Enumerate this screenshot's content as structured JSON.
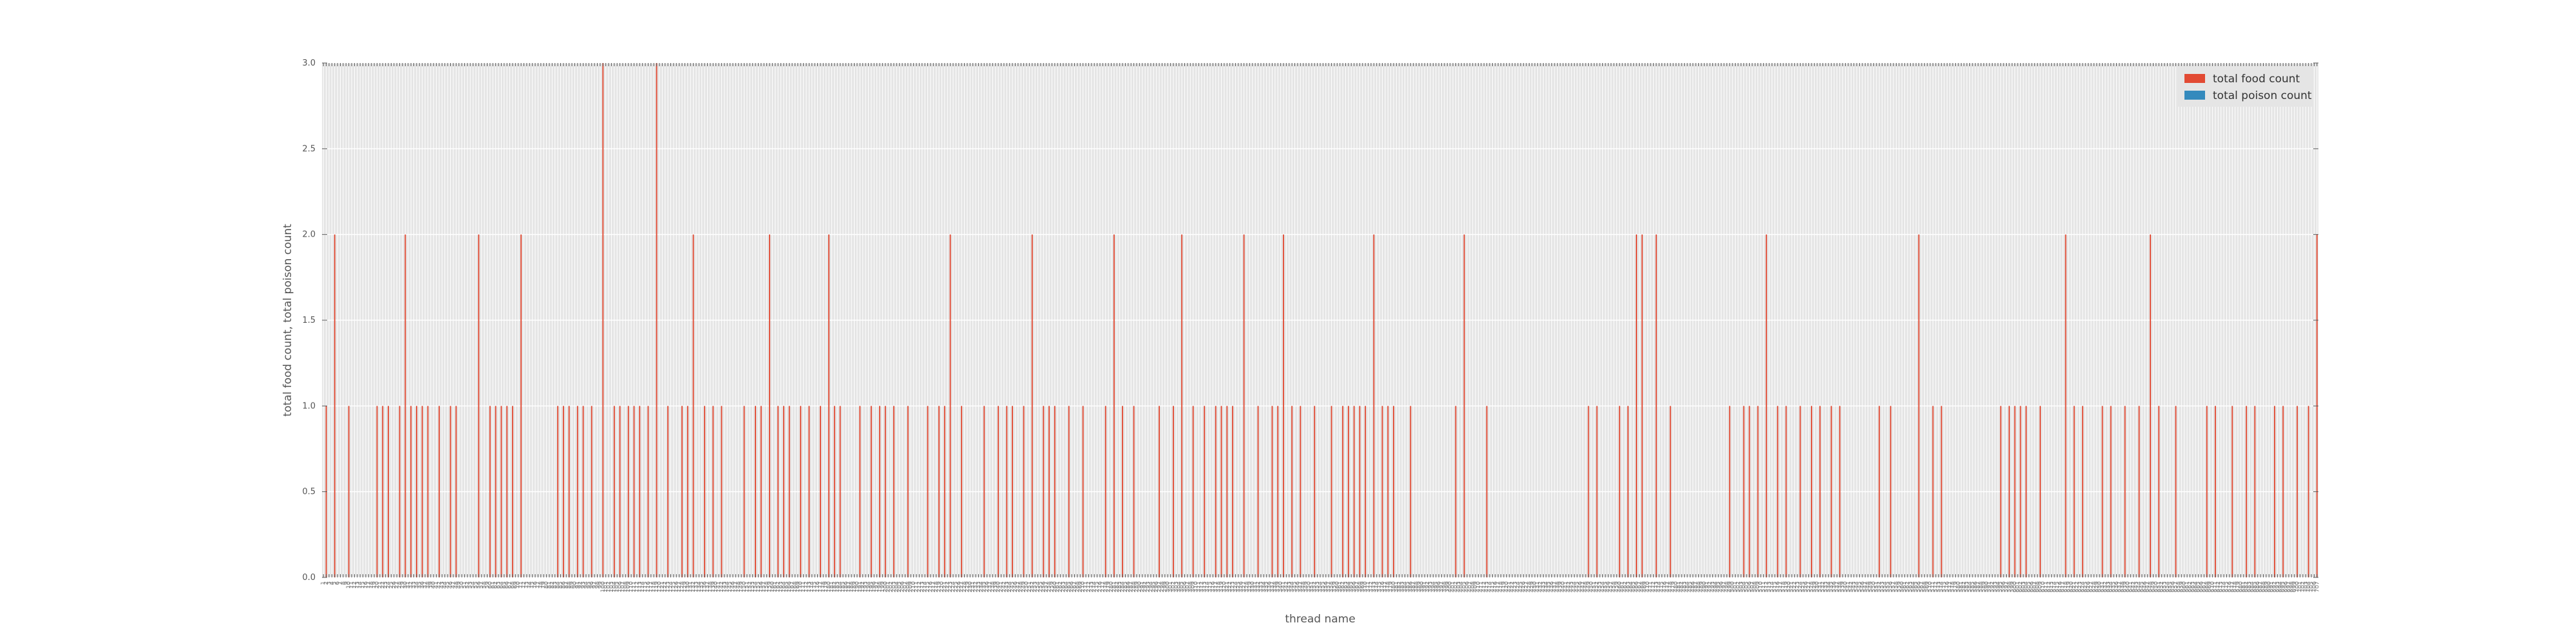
{
  "chart_data": {
    "type": "bar",
    "xlabel": "thread name",
    "ylabel": "total food count, total poison count",
    "ylim": [
      0,
      3.0
    ],
    "yticks": [
      "0.0",
      "0.5",
      "1.0",
      "1.5",
      "2.0",
      "2.5",
      "3.0"
    ],
    "grid": true,
    "legend_position": "top-right",
    "colors": {
      "food": "#e24a33",
      "poison": "#348abd",
      "plot_bg": "#e5e5e5",
      "grid": "#ffffff"
    },
    "category_start": 1,
    "series": [
      {
        "name": "total food count",
        "color": "#e24a33",
        "values": [
          0,
          1,
          0,
          0,
          2,
          0,
          0,
          0,
          0,
          1,
          0,
          0,
          0,
          0,
          0,
          0,
          0,
          0,
          0,
          1,
          0,
          1,
          0,
          1,
          0,
          0,
          0,
          1,
          0,
          2,
          0,
          1,
          0,
          1,
          0,
          1,
          0,
          1,
          0,
          0,
          0,
          1,
          0,
          0,
          0,
          1,
          0,
          1,
          0,
          0,
          0,
          0,
          0,
          0,
          0,
          2,
          0,
          0,
          0,
          1,
          0,
          1,
          0,
          1,
          0,
          1,
          0,
          1,
          0,
          0,
          2,
          0,
          0,
          0,
          0,
          0,
          0,
          0,
          0,
          0,
          0,
          0,
          0,
          1,
          0,
          1,
          0,
          1,
          0,
          0,
          1,
          0,
          1,
          0,
          0,
          1,
          0,
          0,
          0,
          3,
          0,
          0,
          0,
          1,
          0,
          1,
          0,
          0,
          1,
          0,
          1,
          0,
          1,
          0,
          0,
          1,
          0,
          0,
          3,
          0,
          0,
          0,
          1,
          0,
          0,
          0,
          0,
          1,
          0,
          1,
          0,
          2,
          0,
          0,
          0,
          1,
          0,
          0,
          1,
          0,
          0,
          1,
          0,
          0,
          0,
          0,
          0,
          0,
          0,
          1,
          0,
          0,
          0,
          1,
          0,
          1,
          0,
          0,
          2,
          0,
          0,
          1,
          0,
          1,
          0,
          1,
          0,
          0,
          0,
          1,
          0,
          0,
          1,
          0,
          0,
          0,
          1,
          0,
          0,
          2,
          0,
          1,
          0,
          1,
          0,
          0,
          0,
          0,
          0,
          0,
          1,
          0,
          0,
          0,
          1,
          0,
          0,
          1,
          0,
          1,
          0,
          0,
          1,
          0,
          0,
          0,
          0,
          1,
          0,
          0,
          0,
          0,
          0,
          0,
          1,
          0,
          0,
          0,
          1,
          0,
          1,
          0,
          2,
          0,
          0,
          0,
          1,
          0,
          0,
          0,
          0,
          0,
          0,
          0,
          1,
          0,
          0,
          0,
          0,
          1,
          0,
          0,
          1,
          0,
          1,
          0,
          0,
          0,
          1,
          0,
          0,
          2,
          0,
          0,
          0,
          1,
          0,
          1,
          0,
          1,
          0,
          0,
          0,
          0,
          1,
          0,
          0,
          0,
          0,
          1,
          0,
          0,
          0,
          0,
          0,
          0,
          0,
          1,
          0,
          0,
          2,
          0,
          0,
          1,
          0,
          0,
          0,
          1,
          0,
          0,
          0,
          0,
          0,
          0,
          0,
          0,
          1,
          0,
          0,
          0,
          0,
          1,
          0,
          0,
          2,
          0,
          0,
          0,
          1,
          0,
          0,
          0,
          1,
          0,
          0,
          0,
          1,
          0,
          1,
          0,
          1,
          0,
          1,
          0,
          0,
          0,
          2,
          0,
          0,
          0,
          0,
          1,
          0,
          0,
          0,
          0,
          1,
          0,
          1,
          0,
          2,
          0,
          0,
          1,
          0,
          0,
          1,
          0,
          0,
          0,
          0,
          1,
          0,
          0,
          0,
          0,
          0,
          1,
          0,
          0,
          0,
          1,
          0,
          1,
          0,
          1,
          0,
          1,
          0,
          1,
          0,
          0,
          2,
          0,
          0,
          1,
          0,
          1,
          0,
          1,
          0,
          0,
          0,
          0,
          0,
          1,
          0,
          0,
          0,
          0,
          0,
          0,
          0,
          0,
          0,
          0,
          0,
          0,
          0,
          0,
          0,
          1,
          0,
          0,
          2,
          0,
          0,
          0,
          0,
          0,
          0,
          0,
          1,
          0,
          0,
          0,
          0,
          0,
          0,
          0,
          0,
          0,
          0,
          0,
          0,
          0,
          0,
          0,
          0,
          0,
          0,
          0,
          0,
          0,
          0,
          0,
          0,
          0,
          0,
          0,
          0,
          0,
          0,
          0,
          0,
          0,
          0,
          0,
          1,
          0,
          0,
          1,
          0,
          0,
          0,
          0,
          0,
          0,
          0,
          1,
          0,
          0,
          1,
          0,
          0,
          2,
          0,
          2,
          0,
          0,
          0,
          0,
          2,
          0,
          0,
          0,
          0,
          1,
          0,
          0,
          0,
          0,
          0,
          0,
          0,
          0,
          0,
          0,
          0,
          0,
          0,
          0,
          0,
          0,
          0,
          0,
          0,
          0,
          1,
          0,
          0,
          0,
          0,
          1,
          0,
          1,
          0,
          0,
          1,
          0,
          0,
          2,
          0,
          0,
          0,
          1,
          0,
          0,
          1,
          0,
          0,
          0,
          0,
          1,
          0,
          0,
          0,
          1,
          0,
          0,
          1,
          0,
          0,
          0,
          1,
          0,
          0,
          1,
          0,
          0,
          0,
          0,
          0,
          0,
          0,
          0,
          0,
          0,
          0,
          0,
          0,
          1,
          0,
          0,
          0,
          1,
          0,
          0,
          0,
          0,
          0,
          0,
          0,
          0,
          0,
          2,
          0,
          0,
          0,
          0,
          1,
          0,
          0,
          1,
          0,
          0,
          0,
          0,
          0,
          0,
          0,
          0,
          0,
          0,
          0,
          0,
          0,
          0,
          0,
          0,
          0,
          0,
          0,
          0,
          1,
          0,
          0,
          1,
          0,
          1,
          0,
          1,
          0,
          1,
          0,
          0,
          0,
          0,
          1,
          0,
          0,
          0,
          0,
          0,
          0,
          0,
          0,
          2,
          0,
          0,
          1,
          0,
          0,
          1,
          0,
          0,
          0,
          0,
          0,
          0,
          1,
          0,
          0,
          1,
          0,
          0,
          0,
          0,
          1,
          0,
          0,
          0,
          0,
          1,
          0,
          0,
          0,
          2,
          0,
          0,
          1,
          0,
          0,
          0,
          0,
          0,
          1,
          0,
          0,
          0,
          0,
          0,
          0,
          0,
          0,
          0,
          0,
          1,
          0,
          0,
          1,
          0,
          0,
          0,
          0,
          0,
          1,
          0,
          0,
          0,
          0,
          1,
          0,
          0,
          1,
          0,
          0,
          0,
          0,
          0,
          0,
          1,
          0,
          0,
          1,
          0,
          0,
          0,
          0,
          1,
          0,
          0,
          0,
          1,
          0,
          0,
          2
        ]
      },
      {
        "name": "total poison count",
        "color": "#348abd",
        "values": []
      }
    ]
  }
}
